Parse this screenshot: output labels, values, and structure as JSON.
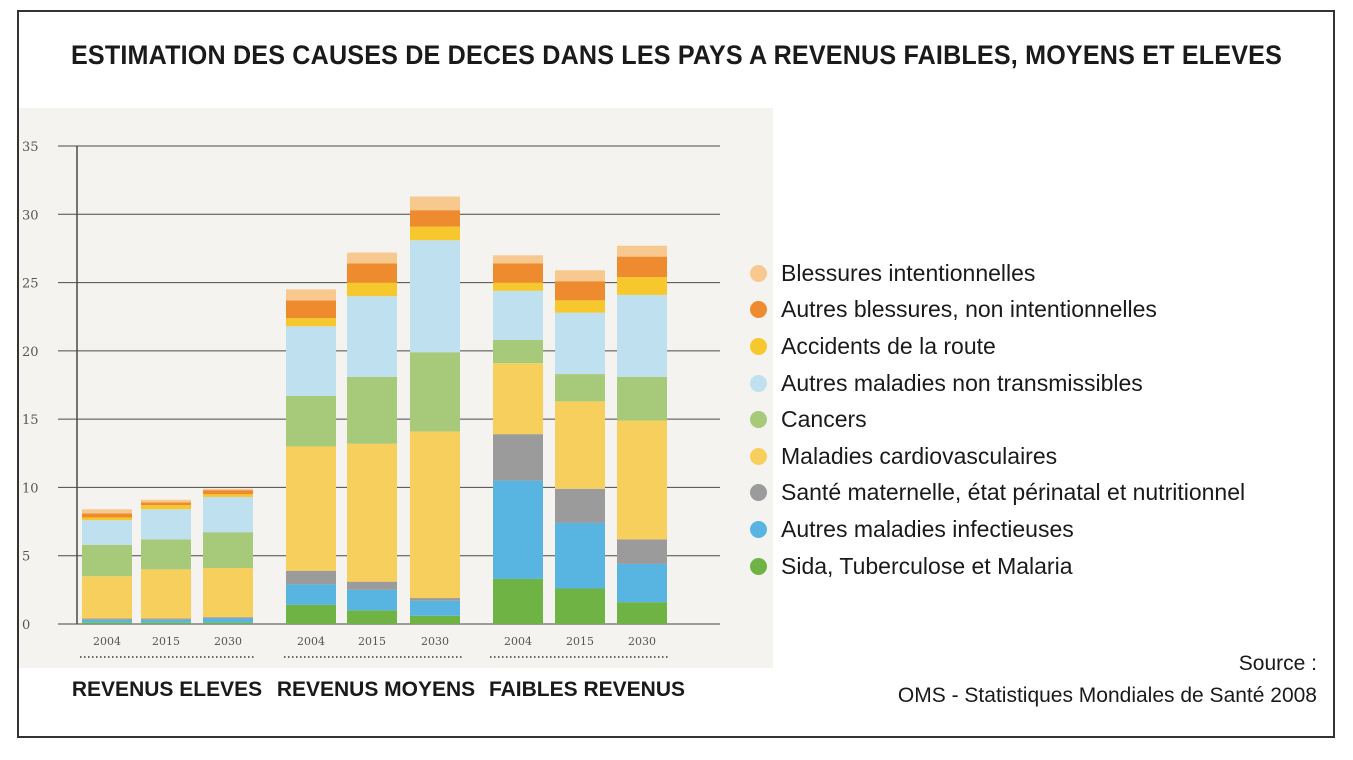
{
  "title": "ESTIMATION DES CAUSES DE DECES DANS LES PAYS A REVENUS FAIBLES, MOYENS ET ELEVES",
  "source": {
    "label": "Source :",
    "text": "OMS - Statistiques Mondiales de Santé 2008"
  },
  "colors": {
    "Blessures intentionnelles": "#f8c98f",
    "Autres blessures, non intentionnelles": "#ee8b2f",
    "Accidents de la route": "#f7c82d",
    "Autres maladies non transmissibles": "#bfe0ef",
    "Cancers": "#a6c97a",
    "Maladies cardiovasculaires": "#f7cf5c",
    "Santé maternelle, état périnatal et nutritionnel": "#9b9b9b",
    "Autres maladies infectieuses": "#58b5e1",
    "Sida, Tuberculose et Malaria": "#6fb345"
  },
  "chart_data": {
    "type": "bar",
    "stacked": true,
    "ylim": [
      0,
      35
    ],
    "yticks": [
      0,
      5,
      10,
      15,
      20,
      25,
      30,
      35
    ],
    "grid": true,
    "legend_position": "right",
    "groups": [
      {
        "label": "REVENUS ELEVES",
        "years": [
          "2004",
          "2015",
          "2030"
        ]
      },
      {
        "label": "REVENUS MOYENS",
        "years": [
          "2004",
          "2015",
          "2030"
        ]
      },
      {
        "label": "FAIBLES REVENUS",
        "years": [
          "2004",
          "2015",
          "2030"
        ]
      }
    ],
    "categories": [
      "2004",
      "2015",
      "2030",
      "2004",
      "2015",
      "2030",
      "2004",
      "2015",
      "2030"
    ],
    "series": [
      {
        "name": "Sida, Tuberculose et Malaria",
        "values": [
          0.1,
          0.1,
          0.1,
          1.4,
          1.0,
          0.6,
          3.3,
          2.6,
          1.6
        ]
      },
      {
        "name": "Autres maladies infectieuses",
        "values": [
          0.2,
          0.2,
          0.3,
          1.5,
          1.5,
          1.1,
          7.2,
          4.8,
          2.8
        ]
      },
      {
        "name": "Santé maternelle, état périnatal et nutritionnel",
        "values": [
          0.1,
          0.1,
          0.1,
          1.0,
          0.6,
          0.2,
          3.4,
          2.5,
          1.8
        ]
      },
      {
        "name": "Maladies cardiovasculaires",
        "values": [
          3.1,
          3.6,
          3.6,
          9.1,
          10.1,
          12.2,
          5.2,
          6.4,
          8.7
        ]
      },
      {
        "name": "Cancers",
        "values": [
          2.3,
          2.2,
          2.6,
          3.7,
          4.9,
          5.8,
          1.7,
          2.0,
          3.2
        ]
      },
      {
        "name": "Autres maladies non transmissibles",
        "values": [
          1.8,
          2.2,
          2.6,
          5.1,
          5.9,
          8.2,
          3.6,
          4.5,
          6.0
        ]
      },
      {
        "name": "Accidents de la route",
        "values": [
          0.2,
          0.3,
          0.2,
          0.6,
          1.0,
          1.0,
          0.6,
          0.9,
          1.3
        ]
      },
      {
        "name": "Autres blessures, non intentionnelles",
        "values": [
          0.3,
          0.2,
          0.3,
          1.3,
          1.4,
          1.2,
          1.4,
          1.4,
          1.5
        ]
      },
      {
        "name": "Blessures intentionnelles",
        "values": [
          0.3,
          0.2,
          0.1,
          0.8,
          0.8,
          1.0,
          0.6,
          0.8,
          0.8
        ]
      }
    ],
    "legend_order": [
      "Blessures intentionnelles",
      "Autres blessures, non intentionnelles",
      "Accidents de la route",
      "Autres maladies non transmissibles",
      "Cancers",
      "Maladies cardiovasculaires",
      "Santé maternelle, état périnatal et nutritionnel",
      "Autres maladies infectieuses",
      "Sida, Tuberculose et Malaria"
    ]
  }
}
